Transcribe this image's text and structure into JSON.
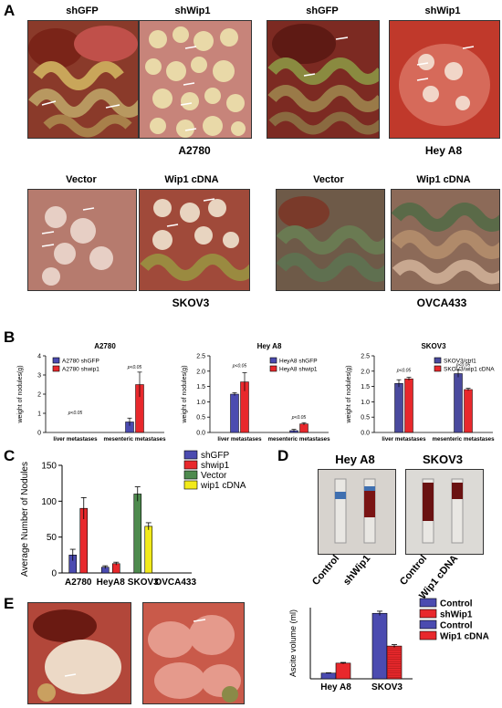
{
  "panels": {
    "A": {
      "letter": "A",
      "photos": [
        {
          "label": "shGFP"
        },
        {
          "label": "shWip1"
        },
        {
          "label": "shGFP"
        },
        {
          "label": "shWip1"
        },
        {
          "label": "Vector"
        },
        {
          "label": "Wip1 cDNA"
        },
        {
          "label": "Vector"
        },
        {
          "label": "Wip1 cDNA"
        }
      ],
      "groups": [
        "A2780",
        "Hey A8",
        "SKOV3",
        "OVCA433"
      ]
    },
    "B": {
      "letter": "B"
    },
    "C": {
      "letter": "C"
    },
    "D": {
      "letter": "D",
      "group_titles": [
        "Hey A8",
        "SKOV3"
      ],
      "tube_labels": [
        "Control",
        "shWip1",
        "Control",
        "Wip1 cDNA"
      ]
    },
    "E": {
      "letter": "E"
    }
  },
  "colors": {
    "blue": "#4b4bb0",
    "red": "#e8282c",
    "green": "#4e8a4e",
    "yellow": "#f2ea1a",
    "purple": "#4a4a9e"
  },
  "chart_data": [
    {
      "type": "bar",
      "title": "A2780",
      "ylabel": "weight of nodules(g)",
      "categories": [
        "liver metastases",
        "mesenteric metastases"
      ],
      "ylim": [
        0,
        4
      ],
      "yticks": [
        "0",
        "1",
        "2",
        "3",
        "4"
      ],
      "series": [
        {
          "name": "A2780 shGFP",
          "values": [
            0,
            0.55
          ],
          "errors": [
            0,
            0.2
          ]
        },
        {
          "name": "A2780 shwip1",
          "values": [
            0,
            2.5
          ],
          "errors": [
            0,
            0.65
          ]
        }
      ],
      "annotations": [
        "p<0.05",
        "p<0.05"
      ]
    },
    {
      "type": "bar",
      "title": "Hey A8",
      "ylabel": "weight of nodules(g)",
      "categories": [
        "liver metastases",
        "mesenteric metastases"
      ],
      "ylim": [
        0,
        2.5
      ],
      "yticks": [
        "0.0",
        "0.5",
        "1.0",
        "1.5",
        "2.0",
        "2.5"
      ],
      "series": [
        {
          "name": "HeyA8 shGFP",
          "values": [
            1.25,
            0.06
          ],
          "errors": [
            0.05,
            0.04
          ]
        },
        {
          "name": "HeyA8 shwip1",
          "values": [
            1.65,
            0.28
          ],
          "errors": [
            0.3,
            0.04
          ]
        }
      ],
      "annotations": [
        "p<0.05",
        "p<0.05"
      ]
    },
    {
      "type": "bar",
      "title": "SKOV3",
      "ylabel": "weight of nodules(g)",
      "categories": [
        "liver metastases",
        "mesenteric metastases"
      ],
      "ylim": [
        0,
        2.5
      ],
      "yticks": [
        "0.0",
        "0.5",
        "1.0",
        "1.5",
        "2.0",
        "2.5"
      ],
      "series": [
        {
          "name": "SKOV3/ctrl1",
          "values": [
            1.6,
            1.92
          ],
          "errors": [
            0.12,
            0.12
          ]
        },
        {
          "name": "SKOV3/wip1 cDNA",
          "values": [
            1.75,
            1.4
          ],
          "errors": [
            0.05,
            0.04
          ]
        }
      ],
      "annotations": [
        "p<0.05",
        "p<0.05"
      ]
    },
    {
      "type": "bar",
      "ylabel": "Average Number of Nodules",
      "categories": [
        "A2780",
        "HeyA8",
        "SKOV3",
        "OVCA433"
      ],
      "ylim": [
        0,
        150
      ],
      "yticks": [
        "0",
        "50",
        "100",
        "150"
      ],
      "series": [
        {
          "name": "shGFP",
          "values": [
            25,
            8,
            null,
            null
          ],
          "errors": [
            8,
            2,
            null,
            null
          ]
        },
        {
          "name": "shwip1",
          "values": [
            90,
            13,
            null,
            null
          ],
          "errors": [
            15,
            2,
            null,
            null
          ]
        },
        {
          "name": "Vector",
          "values": [
            null,
            null,
            110,
            null
          ],
          "errors": [
            null,
            null,
            10,
            null
          ]
        },
        {
          "name": "wip1 cDNA",
          "values": [
            null,
            null,
            65,
            null
          ],
          "errors": [
            null,
            null,
            5,
            null
          ]
        }
      ]
    },
    {
      "type": "bar",
      "ylabel": "Ascite volume (ml)",
      "categories": [
        "Hey A8",
        "SKOV3"
      ],
      "ylim": [
        0,
        5
      ],
      "series": [
        {
          "name": "Control",
          "values": [
            0.4,
            null
          ],
          "errors": [
            0.02,
            null
          ]
        },
        {
          "name": "shWip1",
          "values": [
            1.1,
            null
          ],
          "errors": [
            0.05,
            null
          ]
        },
        {
          "name": "Control",
          "values": [
            null,
            4.6
          ],
          "errors": [
            null,
            0.15
          ]
        },
        {
          "name": "Wip1 cDNA",
          "values": [
            null,
            2.3
          ],
          "errors": [
            null,
            0.1
          ]
        }
      ]
    }
  ]
}
